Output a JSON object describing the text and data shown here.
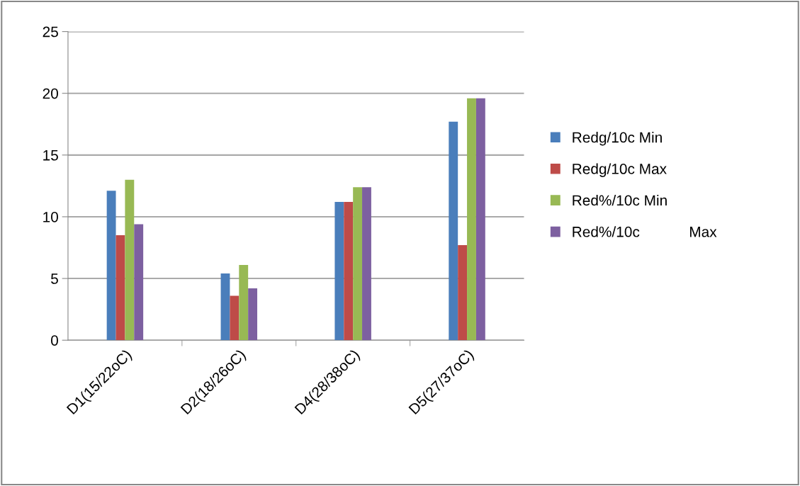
{
  "chart_data": {
    "type": "bar",
    "categories": [
      "D1(15/22oC)",
      "D2(18/26oC)",
      "D4(28/38oC)",
      "D5(27/37oC)"
    ],
    "series": [
      {
        "name": "Redg/10c Min",
        "color": "#4a7ebb",
        "values": [
          12.1,
          5.4,
          11.2,
          17.7
        ]
      },
      {
        "name": "Redg/10c Max",
        "color": "#be4b48",
        "values": [
          8.5,
          3.6,
          11.2,
          7.7
        ]
      },
      {
        "name": "Red%/10c Min",
        "color": "#98b954",
        "values": [
          13.0,
          6.1,
          12.4,
          19.6
        ]
      },
      {
        "name": "Red%/10c            Max",
        "color": "#7d60a0",
        "values": [
          9.4,
          4.2,
          12.4,
          19.6
        ]
      }
    ],
    "ylim": [
      0,
      25
    ],
    "yticks": [
      0,
      5,
      10,
      15,
      20,
      25
    ],
    "grid": "y",
    "legend": "right"
  }
}
